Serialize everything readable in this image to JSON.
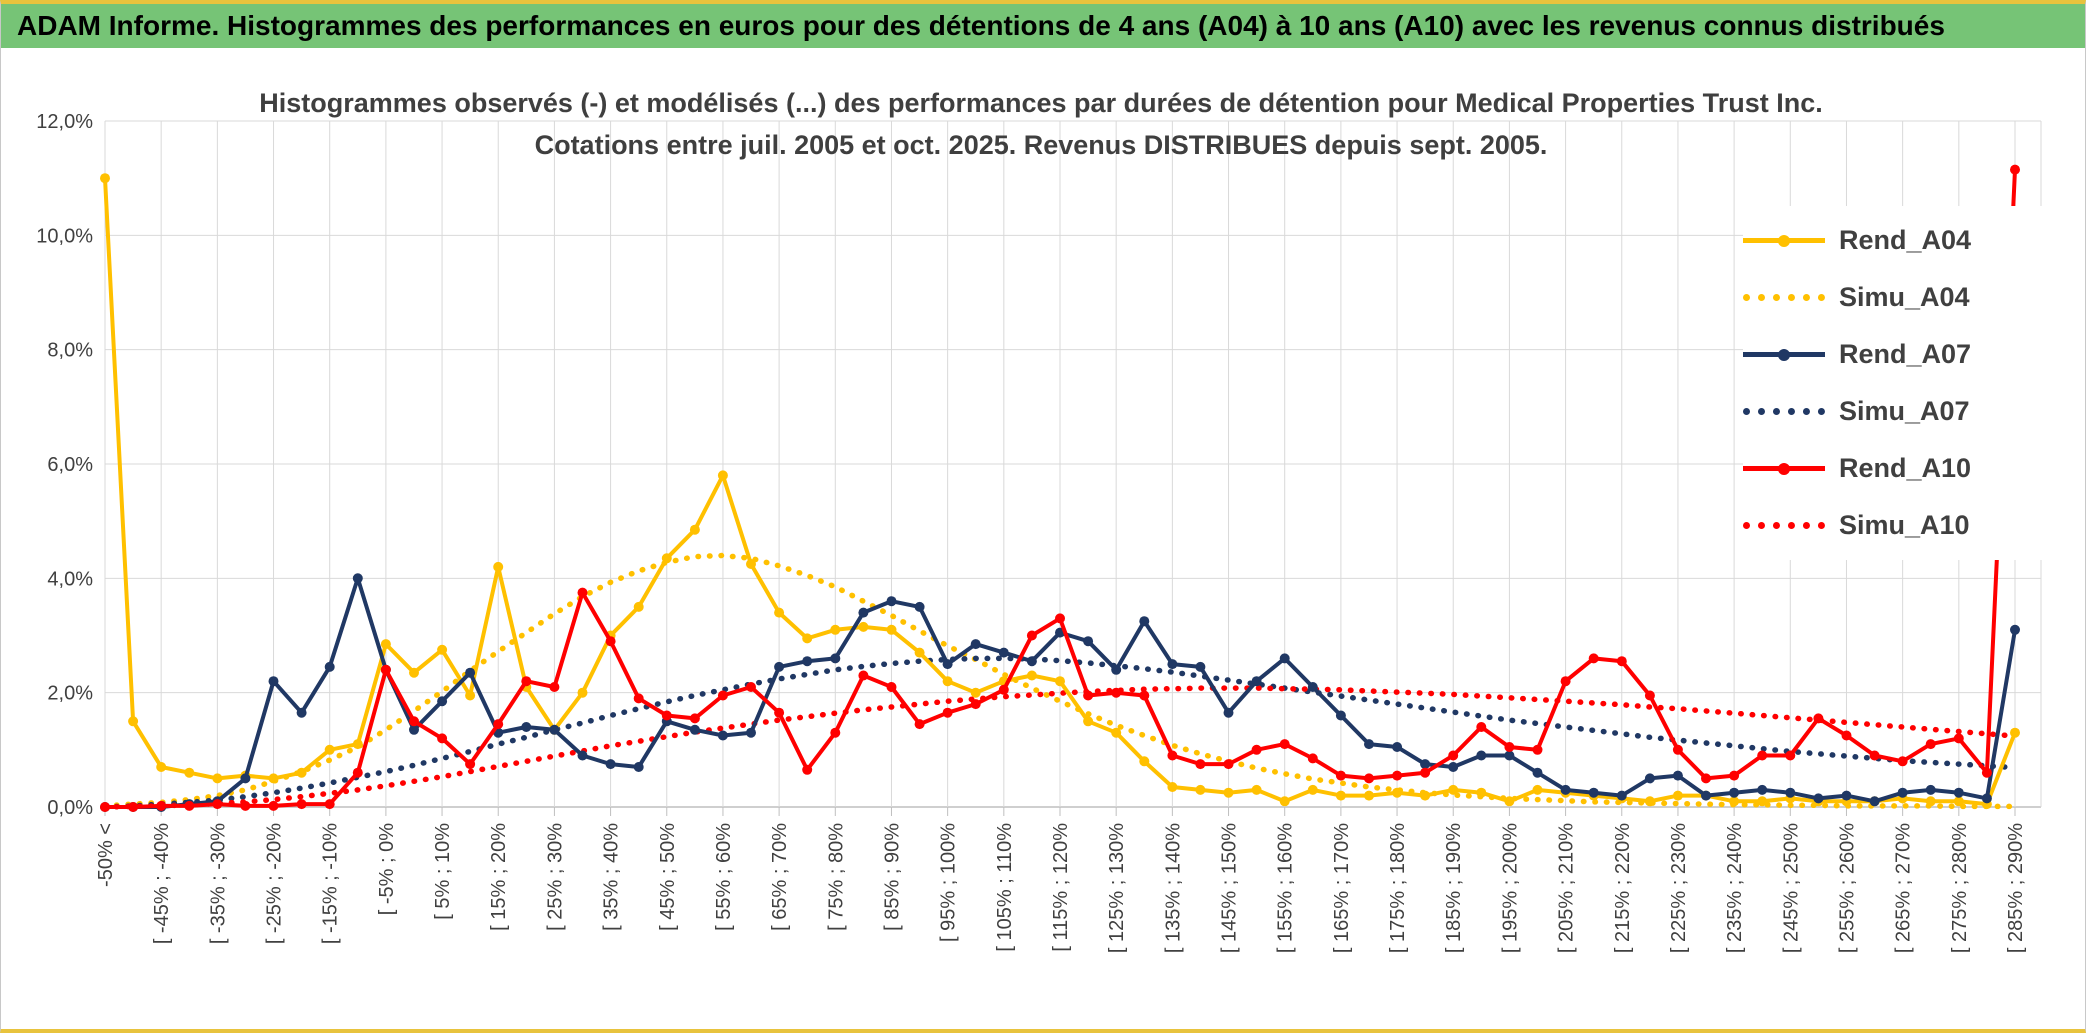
{
  "header": {
    "title": "ADAM Informe. Histogrammes des performances en euros pour des détentions de 4 ans (A04) à 10 ans (A10) avec les revenus connus distribués"
  },
  "colors": {
    "header_green": "#76C476",
    "frame_yellow": "#E8C33D",
    "gridline": "#D9D9D9",
    "axis": "#BFBFBF",
    "text": "#404040",
    "gold": "#FFC000",
    "navy": "#203864",
    "red": "#FF0000"
  },
  "chart_data": {
    "type": "line",
    "title_line1": "Histogrammes observés (-) et modélisés (...) des performances par durées de détention pour Medical Properties Trust Inc.",
    "title_line2": "Cotations entre juil. 2005 et oct. 2025. Revenus DISTRIBUES depuis sept. 2005.",
    "ylabel": "",
    "xlabel": "",
    "ylim": [
      0,
      12
    ],
    "grid": true,
    "legend_position": "right-inside",
    "ytick_labels": [
      "0,0%",
      "2,0%",
      "4,0%",
      "6,0%",
      "8,0%",
      "10,0%",
      "12,0%"
    ],
    "categories": [
      "-50% <",
      "",
      "[ -45% ; -40%",
      "",
      "[ -35% ; -30%",
      "",
      "[ -25% ; -20%",
      "",
      "[ -15% ; -10%",
      "",
      "[ -5% ; 0%",
      "",
      "[ 5% ; 10%",
      "",
      "[ 15% ; 20%",
      "",
      "[ 25% ; 30%",
      "",
      "[ 35% ; 40%",
      "",
      "[ 45% ; 50%",
      "",
      "[ 55% ; 60%",
      "",
      "[ 65% ; 70%",
      "",
      "[ 75% ; 80%",
      "",
      "[ 85% ; 90%",
      "",
      "[ 95% ; 100%",
      "",
      "[ 105% ; 110%",
      "",
      "[ 115% ; 120%",
      "",
      "[ 125% ; 130%",
      "",
      "[ 135% ; 140%",
      "",
      "[ 145% ; 150%",
      "",
      "[ 155% ; 160%",
      "",
      "[ 165% ; 170%",
      "",
      "[ 175% ; 180%",
      "",
      "[ 185% ; 190%",
      "",
      "[ 195% ; 200%",
      "",
      "[ 205% ; 210%",
      "",
      "[ 215% ; 220%",
      "",
      "[ 225% ; 230%",
      "",
      "[ 235% ; 240%",
      "",
      "[ 245% ; 250%",
      "",
      "[ 255% ; 260%",
      "",
      "[ 265% ; 270%",
      "",
      "[ 275% ; 280%",
      "",
      "[ 285% ; 290%"
    ],
    "series": [
      {
        "name": "Rend_A04",
        "color": "#FFC000",
        "style": "solid",
        "values": [
          11.0,
          1.5,
          0.7,
          0.6,
          0.5,
          0.55,
          0.5,
          0.6,
          1.0,
          1.1,
          2.85,
          2.35,
          2.75,
          1.95,
          4.2,
          2.1,
          1.35,
          2.0,
          3.0,
          3.5,
          4.35,
          4.85,
          5.8,
          4.25,
          3.4,
          2.95,
          3.1,
          3.15,
          3.1,
          2.7,
          2.2,
          2.0,
          2.2,
          2.3,
          2.2,
          1.5,
          1.3,
          0.8,
          0.35,
          0.3,
          0.25,
          0.3,
          0.1,
          0.3,
          0.2,
          0.2,
          0.25,
          0.2,
          0.3,
          0.25,
          0.1,
          0.3,
          0.25,
          0.2,
          0.15,
          0.1,
          0.2,
          0.2,
          0.1,
          0.1,
          0.15,
          0.1,
          0.1,
          0.1,
          0.15,
          0.1,
          0.1,
          0.05,
          1.3
        ]
      },
      {
        "name": "Simu_A04",
        "color": "#FFC000",
        "style": "dotted",
        "values": [
          0.02,
          0.05,
          0.08,
          0.13,
          0.2,
          0.3,
          0.45,
          0.62,
          0.82,
          1.05,
          1.35,
          1.68,
          2.02,
          2.38,
          2.72,
          3.05,
          3.38,
          3.68,
          3.93,
          4.13,
          4.28,
          4.38,
          4.4,
          4.35,
          4.22,
          4.05,
          3.85,
          3.6,
          3.35,
          3.08,
          2.82,
          2.58,
          2.32,
          2.08,
          1.85,
          1.63,
          1.43,
          1.25,
          1.08,
          0.93,
          0.8,
          0.68,
          0.58,
          0.49,
          0.42,
          0.35,
          0.3,
          0.25,
          0.21,
          0.18,
          0.15,
          0.13,
          0.11,
          0.09,
          0.08,
          0.07,
          0.06,
          0.05,
          0.04,
          0.04,
          0.03,
          0.03,
          0.02,
          0.02,
          0.02,
          0.02,
          0.01,
          0.01,
          0.01
        ]
      },
      {
        "name": "Rend_A07",
        "color": "#203864",
        "style": "solid",
        "values": [
          0.0,
          0.0,
          0.0,
          0.05,
          0.1,
          0.5,
          2.2,
          1.65,
          2.45,
          4.0,
          2.4,
          1.35,
          1.85,
          2.35,
          1.3,
          1.4,
          1.35,
          0.9,
          0.75,
          0.7,
          1.5,
          1.35,
          1.25,
          1.3,
          2.45,
          2.55,
          2.6,
          3.4,
          3.6,
          3.5,
          2.5,
          2.85,
          2.7,
          2.55,
          3.05,
          2.9,
          2.4,
          3.25,
          2.5,
          2.45,
          1.65,
          2.2,
          2.6,
          2.1,
          1.6,
          1.1,
          1.05,
          0.75,
          0.7,
          0.9,
          0.9,
          0.6,
          0.3,
          0.25,
          0.2,
          0.5,
          0.55,
          0.2,
          0.25,
          0.3,
          0.25,
          0.15,
          0.2,
          0.1,
          0.25,
          0.3,
          0.25,
          0.15,
          3.1
        ]
      },
      {
        "name": "Simu_A07",
        "color": "#203864",
        "style": "dotted",
        "values": [
          0.0,
          0.02,
          0.05,
          0.08,
          0.12,
          0.18,
          0.25,
          0.33,
          0.42,
          0.52,
          0.62,
          0.73,
          0.85,
          0.97,
          1.1,
          1.22,
          1.35,
          1.47,
          1.6,
          1.72,
          1.84,
          1.95,
          2.05,
          2.15,
          2.24,
          2.32,
          2.4,
          2.46,
          2.51,
          2.55,
          2.58,
          2.6,
          2.6,
          2.59,
          2.56,
          2.52,
          2.47,
          2.42,
          2.36,
          2.29,
          2.22,
          2.15,
          2.08,
          2.01,
          1.94,
          1.87,
          1.8,
          1.73,
          1.66,
          1.59,
          1.52,
          1.46,
          1.4,
          1.34,
          1.28,
          1.22,
          1.17,
          1.12,
          1.07,
          1.02,
          0.97,
          0.93,
          0.89,
          0.85,
          0.81,
          0.78,
          0.75,
          0.72,
          0.69
        ]
      },
      {
        "name": "Rend_A10",
        "color": "#FF0000",
        "style": "solid",
        "values": [
          0.0,
          0.0,
          0.02,
          0.02,
          0.05,
          0.02,
          0.02,
          0.05,
          0.05,
          0.6,
          2.4,
          1.5,
          1.2,
          0.75,
          1.45,
          2.2,
          2.1,
          3.75,
          2.9,
          1.9,
          1.6,
          1.55,
          1.95,
          2.1,
          1.65,
          0.65,
          1.3,
          2.3,
          2.1,
          1.45,
          1.65,
          1.8,
          2.05,
          3.0,
          3.3,
          1.95,
          2.0,
          1.95,
          0.9,
          0.75,
          0.75,
          1.0,
          1.1,
          0.85,
          0.55,
          0.5,
          0.55,
          0.6,
          0.9,
          1.4,
          1.05,
          1.0,
          2.2,
          2.6,
          2.55,
          1.95,
          1.0,
          0.5,
          0.55,
          0.9,
          0.9,
          1.55,
          1.25,
          0.9,
          0.8,
          1.1,
          1.2,
          0.6,
          11.15
        ]
      },
      {
        "name": "Simu_A10",
        "color": "#FF0000",
        "style": "dotted",
        "values": [
          0.0,
          0.01,
          0.02,
          0.04,
          0.06,
          0.09,
          0.13,
          0.18,
          0.24,
          0.3,
          0.37,
          0.45,
          0.53,
          0.62,
          0.71,
          0.8,
          0.89,
          0.98,
          1.07,
          1.15,
          1.23,
          1.31,
          1.38,
          1.45,
          1.52,
          1.58,
          1.64,
          1.7,
          1.75,
          1.8,
          1.85,
          1.89,
          1.93,
          1.96,
          1.99,
          2.02,
          2.04,
          2.06,
          2.07,
          2.08,
          2.08,
          2.08,
          2.07,
          2.06,
          2.05,
          2.03,
          2.01,
          1.99,
          1.97,
          1.94,
          1.91,
          1.88,
          1.85,
          1.82,
          1.79,
          1.75,
          1.72,
          1.68,
          1.64,
          1.6,
          1.56,
          1.52,
          1.48,
          1.44,
          1.4,
          1.36,
          1.32,
          1.28,
          1.24
        ]
      }
    ]
  }
}
